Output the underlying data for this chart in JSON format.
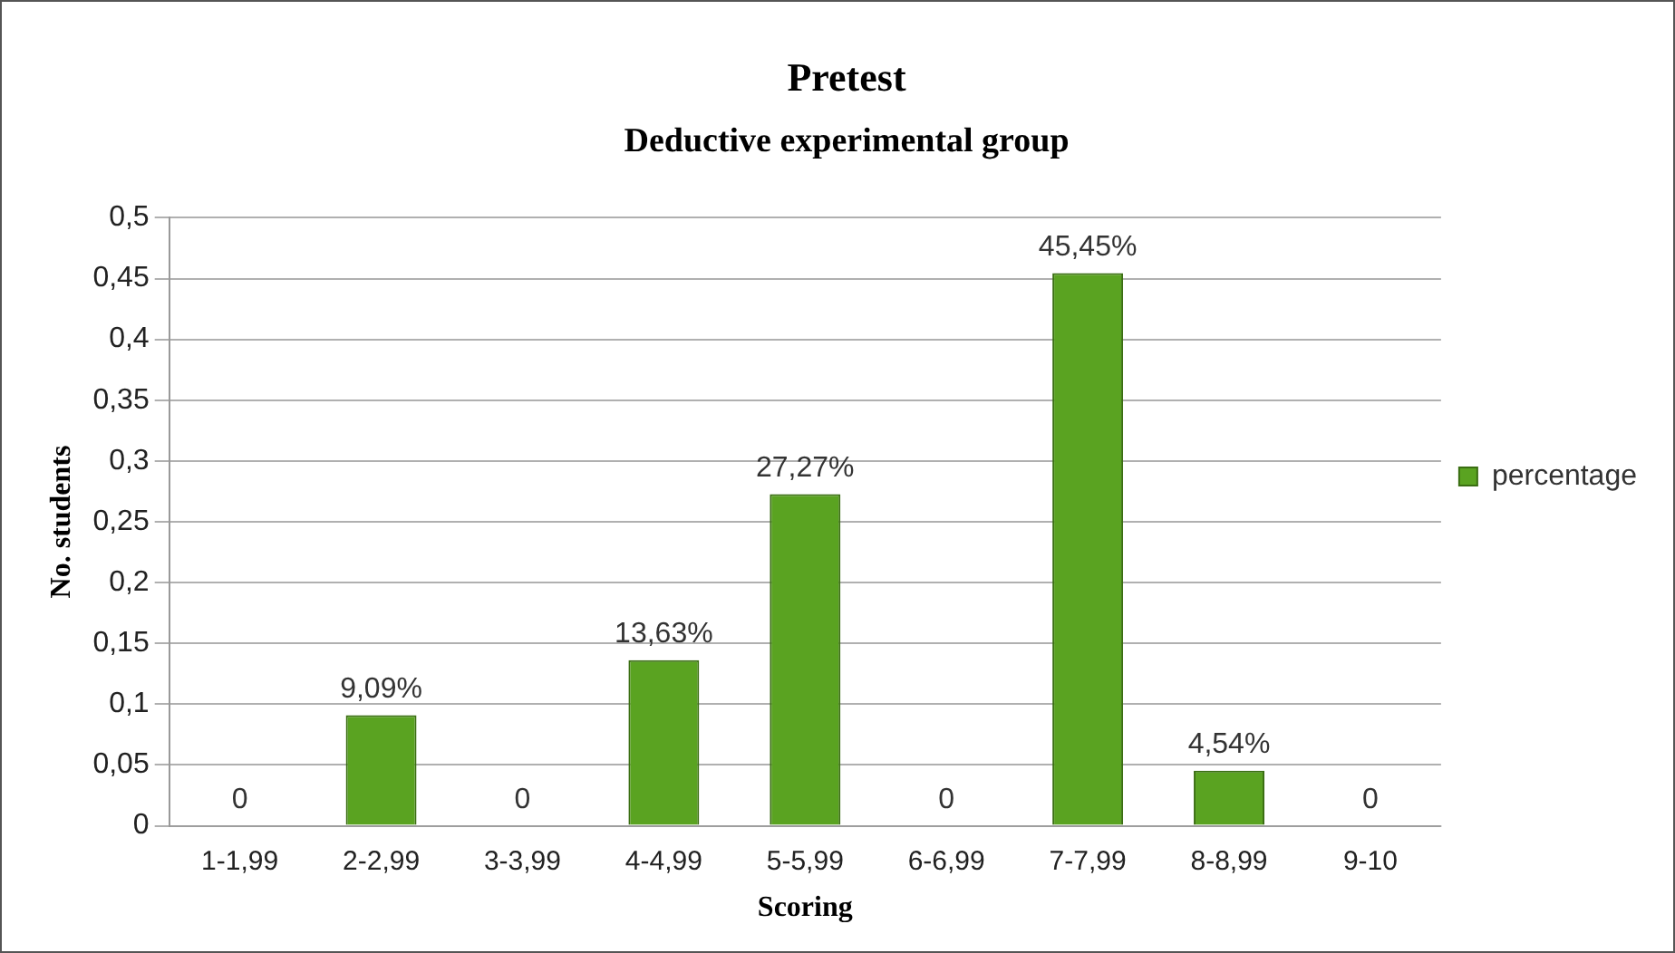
{
  "chart_data": {
    "type": "bar",
    "title": "Pretest",
    "subtitle": "Deductive experimental group",
    "xlabel": "Scoring",
    "ylabel": "No. students",
    "categories": [
      "1-1,99",
      "2-2,99",
      "3-3,99",
      "4-4,99",
      "5-5,99",
      "6-6,99",
      "7-7,99",
      "8-8,99",
      "9-10"
    ],
    "series": [
      {
        "name": "percentage",
        "color": "#5aa321",
        "values": [
          0,
          0.0909,
          0,
          0.1363,
          0.2727,
          0,
          0.4545,
          0.0454,
          0
        ],
        "value_labels": [
          "0",
          "9,09%",
          "0",
          "13,63%",
          "27,27%",
          "0",
          "45,45%",
          "4,54%",
          "0"
        ]
      }
    ],
    "ylim": [
      0,
      0.5
    ],
    "yticks": [
      0,
      {
        "value": 0.05,
        "label": "0,05"
      },
      {
        "value": 0.1,
        "label": "0,1"
      },
      {
        "value": 0.15,
        "label": "0,15"
      },
      {
        "value": 0.2,
        "label": "0,2"
      },
      {
        "value": 0.25,
        "label": "0,25"
      },
      {
        "value": 0.3,
        "label": "0,3"
      },
      {
        "value": 0.35,
        "label": "0,35"
      },
      {
        "value": 0.4,
        "label": "0,4"
      },
      {
        "value": 0.45,
        "label": "0,45"
      },
      {
        "value": 0.5,
        "label": "0,5"
      }
    ],
    "grid": "y",
    "legend": "right"
  }
}
